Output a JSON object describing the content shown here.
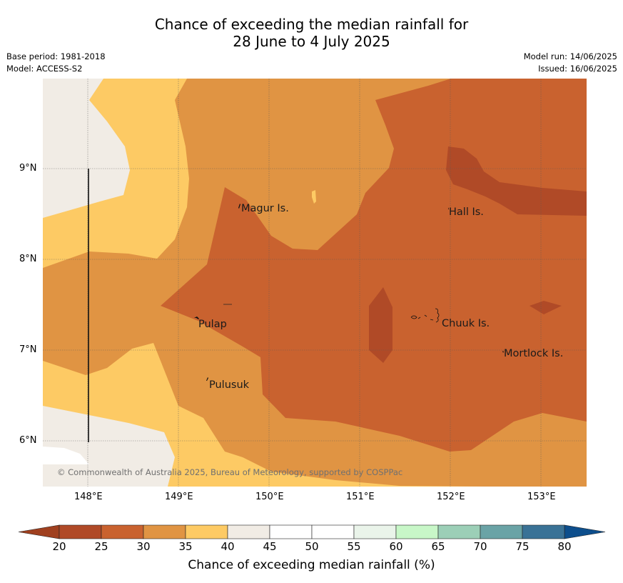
{
  "title_line1": "Chance of exceeding the median rainfall for",
  "title_line2": "28 June to 4 July 2025",
  "meta": {
    "base_period": "Base period: 1981-2018",
    "model": "Model: ACCESS-S2",
    "model_run": "Model run: 14/06/2025",
    "issued": "Issued: 16/06/2025"
  },
  "axes": {
    "lat_ticks": [
      "9°N",
      "8°N",
      "7°N",
      "6°N"
    ],
    "lon_ticks": [
      "148°E",
      "149°E",
      "150°E",
      "151°E",
      "152°E",
      "153°E"
    ]
  },
  "places": {
    "magur": "Magur Is.",
    "hall": "Hall Is.",
    "pulap": "Pulap",
    "chuuk": "Chuuk Is.",
    "mortlock": "Mortlock Is.",
    "pulusuk": "Pulusuk"
  },
  "copyright": "© Commonwealth of Australia 2025, Bureau of Meteorology, supported by COSPPac",
  "colorbar": {
    "title": "Chance of exceeding median rainfall (%)",
    "labels": [
      "20",
      "25",
      "30",
      "35",
      "40",
      "45",
      "50",
      "55",
      "60",
      "65",
      "70",
      "75",
      "80"
    ],
    "colors": [
      "#b04a27",
      "#c9622f",
      "#e09443",
      "#fdca64",
      "#f1ece5",
      "#ffffff",
      "#ffffff",
      "#eaf4ea",
      "#c8f7c8",
      "#9ccfb7",
      "#6aa3a6",
      "#3a7296"
    ],
    "under_color": "#a0401f",
    "over_color": "#0d4e8c"
  }
}
